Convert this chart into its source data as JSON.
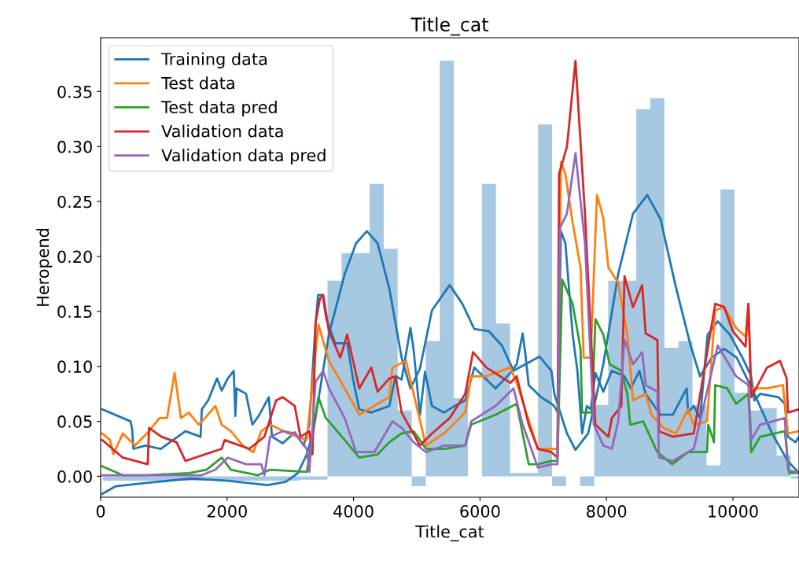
{
  "chart_data": {
    "type": "histogram",
    "color": "#a6c8e1",
    "bins": [
      36,
      258,
      480,
      702,
      924,
      1146,
      1368,
      1590,
      1812,
      2034,
      2256,
      2478,
      2700,
      2922,
      3144,
      3366,
      3588,
      3810,
      4032,
      4254,
      4476,
      4698,
      4920,
      5142,
      5364,
      5586,
      5808,
      6030,
      6252,
      6474,
      6696,
      6918,
      7140,
      7362,
      7584,
      7806,
      8028,
      8250,
      8472,
      8694,
      8916,
      9138,
      9360,
      9582,
      9804,
      10026,
      10248,
      10470,
      10692,
      10914,
      11045
    ],
    "values": [
      -0.004,
      -0.004,
      -0.004,
      -0.004,
      -0.004,
      -0.004,
      -0.004,
      -0.004,
      -0.004,
      -0.004,
      -0.004,
      -0.004,
      -0.004,
      -0.004,
      -0.003,
      -0.003,
      0.178,
      0.203,
      0.203,
      0.266,
      0.207,
      0.06,
      -0.009,
      0.123,
      0.378,
      0.071,
      0.0,
      0.266,
      0.139,
      0.003,
      0.003,
      0.32,
      -0.009,
      0.0,
      -0.009,
      0.065,
      0.178,
      0.178,
      0.334,
      0.344,
      0.117,
      0.123,
      0.065,
      0.01,
      0.261,
      0.076,
      0.06,
      0.062,
      0.019,
      -0.002
    ],
    "title": "Title_cat",
    "xlabel": "Title_cat",
    "ylabel": "Heropend",
    "xlim": [
      0,
      11045
    ],
    "ylim": [
      -0.019,
      0.399
    ],
    "xticks": [
      0,
      2000,
      4000,
      6000,
      8000,
      10000
    ],
    "yticks": [
      {
        "value": 0,
        "label": "0.00"
      },
      {
        "value": 0.05,
        "label": "0.05"
      },
      {
        "value": 0.1,
        "label": "0.10"
      },
      {
        "value": 0.15,
        "label": "0.15"
      },
      {
        "value": 0.2,
        "label": "0.20"
      },
      {
        "value": 0.25,
        "label": "0.25"
      },
      {
        "value": 0.3,
        "label": "0.30"
      },
      {
        "value": 0.35,
        "label": "0.35"
      }
    ],
    "grid": false,
    "legend": "top left",
    "series": [
      {
        "type": "line",
        "color": "#1f77b4",
        "x": [
          25,
          240,
          716,
          1435,
          2010,
          2640,
          2930,
          3120,
          3260,
          3360,
          3610,
          3860,
          4040,
          4210,
          4380,
          4565,
          4760,
          4900,
          5050,
          5240,
          5520,
          5720,
          5910,
          6140,
          6345,
          6530,
          6940,
          7130,
          7175,
          7375,
          7510,
          7710,
          7950,
          8185,
          8420,
          8645,
          8855,
          9090,
          9330,
          9480,
          9665,
          9860,
          10060,
          10340,
          10620,
          10865,
          11045
        ],
        "values": [
          -0.016,
          -0.009,
          -0.006,
          -0.002,
          -0.004,
          -0.008,
          -0.005,
          0.003,
          0.02,
          0.04,
          0.129,
          0.184,
          0.212,
          0.223,
          0.212,
          0.171,
          0.108,
          0.08,
          0.098,
          0.151,
          0.174,
          0.157,
          0.134,
          0.132,
          0.119,
          0.096,
          0.109,
          0.096,
          0.075,
          0.039,
          0.024,
          0.039,
          0.102,
          0.184,
          0.239,
          0.256,
          0.234,
          0.174,
          0.119,
          0.091,
          0.108,
          0.116,
          0.108,
          0.075,
          0.039,
          0.014,
          0.003
        ]
      },
      {
        "type": "line",
        "name": "Training data",
        "color": "#1f77b4",
        "x": [
          25,
          473,
          498,
          518,
          710,
          950,
          1340,
          1580,
          1600,
          1700,
          1840,
          1915,
          2010,
          2105,
          2130,
          2150,
          2300,
          2400,
          2500,
          2660,
          2710,
          2880,
          3070,
          3210,
          3300,
          3400,
          3440,
          3510,
          3570,
          3710,
          3900,
          3990,
          4090,
          4280,
          4565,
          4665,
          4760,
          4900,
          4950,
          5050,
          5130,
          5240,
          5430,
          5600,
          5765,
          5910,
          6245,
          6480,
          6580,
          6675,
          6720,
          6770,
          6965,
          7130,
          7175,
          7230,
          7280,
          7350,
          7465,
          7540,
          7615,
          7690,
          7750,
          7825,
          7950,
          8085,
          8285,
          8385,
          8520,
          8620,
          8855,
          9050,
          9140,
          9270,
          9290,
          9380,
          9480,
          9600,
          9760,
          9950,
          10150,
          10290,
          10340,
          10430,
          10720,
          10820,
          10870,
          10990,
          11045
        ],
        "values": [
          0.061,
          0.05,
          0.043,
          0.025,
          0.028,
          0.025,
          0.041,
          0.036,
          0.061,
          0.069,
          0.089,
          0.078,
          0.089,
          0.096,
          0.055,
          0.08,
          0.075,
          0.047,
          0.055,
          0.072,
          0.036,
          0.03,
          0.04,
          0.028,
          0.047,
          0.14,
          0.165,
          0.165,
          0.143,
          0.121,
          0.121,
          0.089,
          0.061,
          0.058,
          0.064,
          0.091,
          0.088,
          0.135,
          0.115,
          0.056,
          0.095,
          0.064,
          0.058,
          0.064,
          0.069,
          0.099,
          0.08,
          0.094,
          0.102,
          0.13,
          0.11,
          0.083,
          0.072,
          0.066,
          0.064,
          0.058,
          0.223,
          0.212,
          0.129,
          0.096,
          0.039,
          0.064,
          0.061,
          0.094,
          0.077,
          0.096,
          0.091,
          0.08,
          0.096,
          0.075,
          0.056,
          0.056,
          0.066,
          0.08,
          0.058,
          0.064,
          0.053,
          0.129,
          0.141,
          0.129,
          0.108,
          0.091,
          0.069,
          0.075,
          0.072,
          0.066,
          0.036,
          0.031,
          0.036
        ]
      },
      {
        "type": "line",
        "name": "Test data",
        "color": "#ff7f0e",
        "x": [
          25,
          150,
          200,
          350,
          545,
          765,
          930,
          1050,
          1170,
          1270,
          1395,
          1550,
          1650,
          1815,
          1915,
          2060,
          2250,
          2415,
          2540,
          2680,
          2970,
          3260,
          3445,
          3610,
          3860,
          4090,
          4380,
          4565,
          4615,
          4830,
          4950,
          5145,
          5430,
          5765,
          5860,
          6100,
          6480,
          6580,
          6915,
          7130,
          7225,
          7280,
          7350,
          7465,
          7590,
          7640,
          7750,
          7850,
          7950,
          8030,
          8185,
          8330,
          8420,
          8620,
          8710,
          8905,
          9100,
          9290,
          9380,
          9590,
          9720,
          9860,
          10050,
          10200,
          10245,
          10290,
          10540,
          10790,
          10870,
          11045
        ],
        "values": [
          0.039,
          0.033,
          0.02,
          0.039,
          0.028,
          0.041,
          0.053,
          0.053,
          0.094,
          0.053,
          0.058,
          0.047,
          0.053,
          0.064,
          0.047,
          0.041,
          0.028,
          0.022,
          0.041,
          0.047,
          0.039,
          0.033,
          0.138,
          0.105,
          0.08,
          0.056,
          0.066,
          0.072,
          0.099,
          0.105,
          0.075,
          0.028,
          0.039,
          0.058,
          0.091,
          0.091,
          0.099,
          0.085,
          0.025,
          0.025,
          0.025,
          0.286,
          0.275,
          0.231,
          0.19,
          0.108,
          0.108,
          0.256,
          0.235,
          0.19,
          0.176,
          0.129,
          0.069,
          0.075,
          0.056,
          0.044,
          0.039,
          0.061,
          0.047,
          0.05,
          0.151,
          0.154,
          0.135,
          0.127,
          0.157,
          0.08,
          0.08,
          0.083,
          0.039,
          0.041
        ]
      },
      {
        "type": "line",
        "name": "Test data pred",
        "color": "#2ca02c",
        "x": [
          25,
          350,
          700,
          1400,
          1675,
          1915,
          2060,
          2490,
          2680,
          3260,
          3445,
          3560,
          3610,
          3860,
          4090,
          4380,
          4565,
          4760,
          4950,
          5145,
          5430,
          5765,
          5860,
          6245,
          6580,
          6770,
          6915,
          7130,
          7225,
          7300,
          7465,
          7590,
          7615,
          7770,
          7825,
          7950,
          8050,
          8235,
          8330,
          8375,
          8580,
          8805,
          9040,
          9290,
          9590,
          9610,
          9700,
          9720,
          9910,
          10050,
          10245,
          10290,
          10430,
          10820,
          10890,
          11045
        ],
        "values": [
          0.009,
          0.001,
          0.001,
          0.003,
          0.006,
          0.017,
          0.006,
          0.001,
          0.006,
          0.004,
          0.072,
          0.053,
          0.05,
          0.033,
          0.017,
          0.02,
          0.031,
          0.039,
          0.041,
          0.025,
          0.025,
          0.028,
          0.047,
          0.056,
          0.066,
          0.011,
          0.011,
          0.014,
          0.014,
          0.179,
          0.157,
          0.116,
          0.058,
          0.058,
          0.143,
          0.129,
          0.102,
          0.096,
          0.075,
          0.047,
          0.05,
          0.022,
          0.011,
          0.022,
          0.022,
          0.047,
          0.031,
          0.083,
          0.08,
          0.066,
          0.075,
          0.022,
          0.036,
          0.041,
          0.003,
          0.003
        ]
      },
      {
        "type": "line",
        "name": "Validation data",
        "color": "#d62728",
        "x": [
          25,
          350,
          745,
          765,
          960,
          1200,
          1340,
          1915,
          1960,
          2350,
          2590,
          2775,
          2880,
          3070,
          3160,
          3300,
          3350,
          3400,
          3470,
          3520,
          3610,
          3790,
          3900,
          4090,
          4280,
          4380,
          4565,
          4665,
          4760,
          5050,
          5240,
          5520,
          5765,
          5890,
          6100,
          6480,
          6580,
          6770,
          6915,
          7130,
          7225,
          7250,
          7375,
          7510,
          7660,
          7825,
          8030,
          8085,
          8235,
          8285,
          8420,
          8565,
          8620,
          8805,
          8830,
          9050,
          9380,
          9720,
          9860,
          10000,
          10200,
          10245,
          10290,
          10540,
          10745,
          10850,
          10870,
          11045
        ],
        "values": [
          0.033,
          0.017,
          0.011,
          0.044,
          0.036,
          0.031,
          0.014,
          0.025,
          0.033,
          0.025,
          0.036,
          0.069,
          0.072,
          0.064,
          0.036,
          0.041,
          0.02,
          0.14,
          0.162,
          0.165,
          0.132,
          0.108,
          0.129,
          0.08,
          0.099,
          0.077,
          0.089,
          0.091,
          0.058,
          0.028,
          0.039,
          0.053,
          0.075,
          0.113,
          0.099,
          0.085,
          0.091,
          0.047,
          0.025,
          0.022,
          0.017,
          0.275,
          0.3,
          0.378,
          0.239,
          0.047,
          0.036,
          0.053,
          0.064,
          0.182,
          0.154,
          0.174,
          0.13,
          0.124,
          0.041,
          0.036,
          0.039,
          0.157,
          0.154,
          0.132,
          0.118,
          0.157,
          0.072,
          0.099,
          0.105,
          0.089,
          0.058,
          0.061
        ]
      },
      {
        "type": "line",
        "name": "Validation data pred",
        "color": "#9467bd",
        "x": [
          25,
          1600,
          1815,
          2010,
          2300,
          2540,
          2590,
          2680,
          2880,
          3070,
          3260,
          3300,
          3400,
          3520,
          3610,
          3860,
          4040,
          4330,
          4615,
          4760,
          4950,
          5145,
          5430,
          5765,
          5860,
          6245,
          6530,
          6675,
          6915,
          7130,
          7225,
          7265,
          7375,
          7510,
          7660,
          7800,
          7950,
          8085,
          8185,
          8285,
          8420,
          8565,
          8620,
          8805,
          8830,
          9050,
          9380,
          9760,
          10050,
          10245,
          10290,
          10430,
          10820,
          10870,
          11045
        ],
        "values": [
          0.001,
          0.001,
          0.006,
          0.017,
          0.011,
          0.011,
          0.001,
          0.036,
          0.041,
          0.039,
          0.025,
          0.004,
          0.086,
          0.096,
          0.08,
          0.053,
          0.022,
          0.022,
          0.05,
          0.044,
          0.031,
          0.022,
          0.028,
          0.028,
          0.05,
          0.064,
          0.08,
          0.047,
          0.008,
          0.011,
          0.011,
          0.226,
          0.239,
          0.294,
          0.212,
          0.047,
          0.028,
          0.025,
          0.05,
          0.124,
          0.102,
          0.113,
          0.083,
          0.077,
          0.017,
          0.014,
          0.025,
          0.119,
          0.091,
          0.083,
          0.033,
          0.047,
          0.053,
          0.006,
          0.003
        ]
      }
    ]
  }
}
